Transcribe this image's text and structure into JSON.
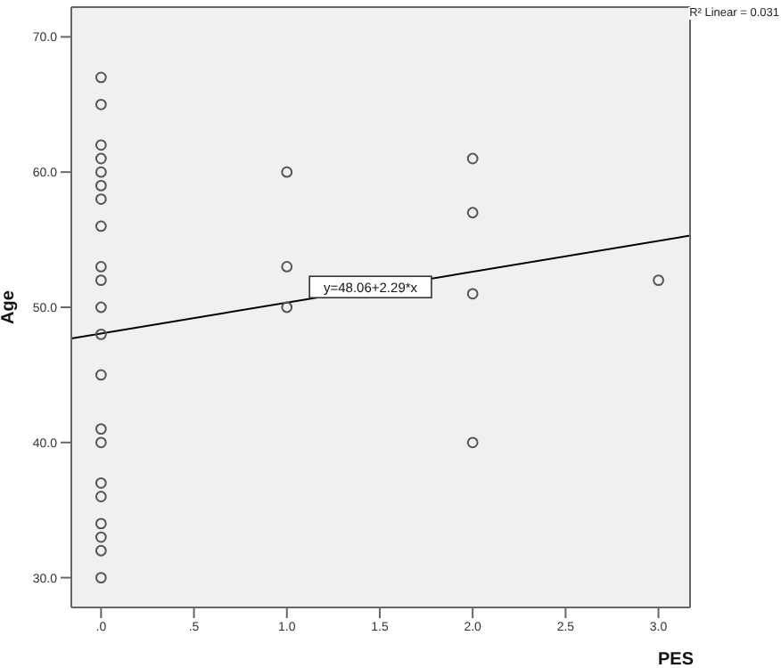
{
  "chart_data": {
    "type": "scatter",
    "xlabel": "PES",
    "ylabel": "Age",
    "xlim": [
      -0.16,
      3.17
    ],
    "ylim": [
      27.8,
      72.2
    ],
    "xticks": [
      {
        "value": 0,
        "label": ".0"
      },
      {
        "value": 0.5,
        "label": ".5"
      },
      {
        "value": 1,
        "label": "1.0"
      },
      {
        "value": 1.5,
        "label": "1.5"
      },
      {
        "value": 2,
        "label": "2.0"
      },
      {
        "value": 2.5,
        "label": "2.5"
      },
      {
        "value": 3,
        "label": "3.0"
      }
    ],
    "yticks": [
      {
        "value": 30,
        "label": "30.0"
      },
      {
        "value": 40,
        "label": "40.0"
      },
      {
        "value": 50,
        "label": "50.0"
      },
      {
        "value": 60,
        "label": "60.0"
      },
      {
        "value": 70,
        "label": "70.0"
      }
    ],
    "legend": false,
    "series": [
      {
        "marker": "circle",
        "color": "#555555",
        "x": [
          0,
          0,
          0,
          0,
          0,
          0,
          0,
          0,
          0,
          0,
          0,
          0,
          0,
          0,
          0,
          0,
          0,
          0,
          0,
          0,
          0,
          1,
          1,
          1,
          2,
          2,
          2,
          2,
          3
        ],
        "values": [
          67,
          65,
          62,
          61,
          60,
          59,
          58,
          56,
          53,
          52,
          50,
          48,
          45,
          41,
          40,
          37,
          36,
          34,
          33,
          32,
          30,
          60,
          53,
          50,
          61,
          57,
          51,
          40,
          52
        ]
      },
      {
        "type": "line",
        "marker": "none",
        "color": "#000000",
        "x": [
          -0.16,
          3.17
        ],
        "values": [
          47.7,
          55.3
        ]
      }
    ],
    "annotations": [
      {
        "text": "y=48.06+2.29*x",
        "x": 1.45,
        "y": 51.5
      },
      "R² Linear = 0.031"
    ]
  }
}
